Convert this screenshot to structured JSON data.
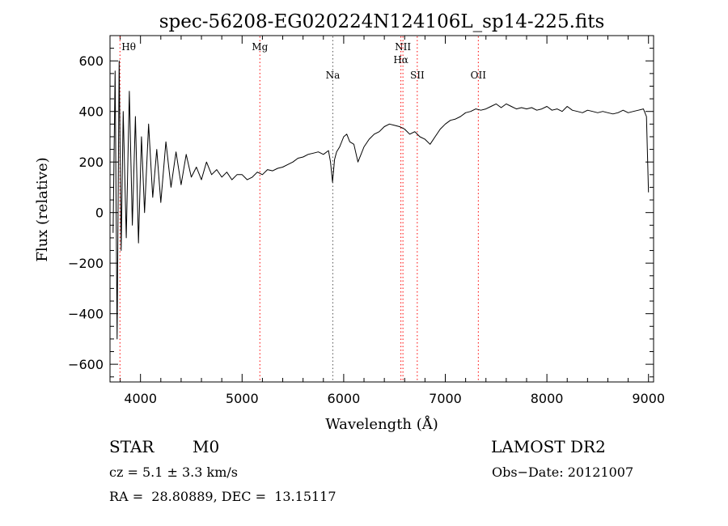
{
  "chart_data": {
    "type": "line",
    "title": "spec-56208-EG020224N124106L_sp14-225.fits",
    "xlabel": "Wavelength (Å)",
    "ylabel": "Flux (relative)",
    "xlim": [
      3700,
      9050
    ],
    "ylim": [
      -670,
      700
    ],
    "xticks": [
      4000,
      5000,
      6000,
      7000,
      8000,
      9000
    ],
    "yticks": [
      -600,
      -400,
      -200,
      0,
      200,
      400,
      600
    ],
    "xtick_labels": [
      "4000",
      "5000",
      "6000",
      "7000",
      "8000",
      "9000"
    ],
    "ytick_labels": [
      "−600",
      "−400",
      "−200",
      "0",
      "200",
      "400",
      "600"
    ],
    "lines": [
      {
        "label": "Hθ",
        "wavelength": 3798,
        "label_row": "top",
        "color": "#ff0000"
      },
      {
        "label": "Mg",
        "wavelength": 5175,
        "label_row": "top",
        "color": "#ff0000"
      },
      {
        "label": "Na",
        "wavelength": 5893,
        "label_row": "mid",
        "color": "#555555"
      },
      {
        "label": "NII",
        "wavelength": 6583,
        "label_row": "top",
        "color": "#ff0000"
      },
      {
        "label": "Hα",
        "wavelength": 6563,
        "label_row": "second",
        "color": "#ff0000"
      },
      {
        "label": "SII",
        "wavelength": 6724,
        "label_row": "mid",
        "color": "#ff0000"
      },
      {
        "label": "OII",
        "wavelength": 7325,
        "label_row": "mid",
        "color": "#ff0000"
      }
    ],
    "series": [
      {
        "color": "#000000",
        "x": [
          3730,
          3750,
          3770,
          3790,
          3810,
          3830,
          3860,
          3890,
          3920,
          3950,
          3980,
          4010,
          4040,
          4080,
          4120,
          4160,
          4200,
          4250,
          4300,
          4350,
          4400,
          4450,
          4500,
          4550,
          4600,
          4650,
          4700,
          4750,
          4800,
          4850,
          4900,
          4950,
          5000,
          5050,
          5100,
          5150,
          5200,
          5250,
          5300,
          5350,
          5400,
          5450,
          5500,
          5550,
          5600,
          5650,
          5700,
          5750,
          5800,
          5850,
          5870,
          5890,
          5910,
          5930,
          5960,
          6000,
          6030,
          6060,
          6100,
          6140,
          6170,
          6200,
          6250,
          6300,
          6350,
          6400,
          6450,
          6500,
          6550,
          6600,
          6650,
          6700,
          6750,
          6800,
          6850,
          6900,
          6950,
          7000,
          7050,
          7100,
          7150,
          7200,
          7250,
          7300,
          7350,
          7400,
          7450,
          7500,
          7550,
          7600,
          7650,
          7700,
          7750,
          7800,
          7850,
          7900,
          7950,
          8000,
          8050,
          8100,
          8150,
          8200,
          8250,
          8300,
          8350,
          8400,
          8450,
          8500,
          8550,
          8600,
          8650,
          8700,
          8750,
          8800,
          8850,
          8900,
          8950,
          8980,
          9000
        ],
        "y": [
          -80,
          560,
          -500,
          600,
          -150,
          400,
          -100,
          480,
          -50,
          380,
          -120,
          300,
          0,
          350,
          60,
          250,
          40,
          280,
          100,
          240,
          110,
          230,
          140,
          180,
          130,
          200,
          150,
          170,
          140,
          160,
          130,
          150,
          150,
          130,
          140,
          160,
          150,
          170,
          165,
          175,
          180,
          190,
          200,
          215,
          220,
          230,
          235,
          240,
          230,
          245,
          200,
          120,
          210,
          240,
          260,
          300,
          310,
          280,
          270,
          200,
          230,
          260,
          290,
          310,
          320,
          340,
          350,
          345,
          340,
          330,
          310,
          320,
          300,
          290,
          270,
          300,
          330,
          350,
          365,
          370,
          380,
          395,
          400,
          410,
          405,
          410,
          420,
          430,
          415,
          430,
          420,
          410,
          415,
          410,
          415,
          405,
          410,
          420,
          405,
          410,
          400,
          420,
          405,
          400,
          395,
          405,
          400,
          395,
          400,
          395,
          390,
          395,
          405,
          395,
          400,
          405,
          410,
          380,
          80
        ]
      }
    ],
    "grid": false,
    "legend": "none"
  },
  "info": {
    "class_label": "STAR",
    "subclass_label": "M0",
    "survey": "LAMOST DR2",
    "cz": "cz = 5.1 ± 3.3 km/s",
    "obs_date": "Obs−Date: 20121007",
    "coords": "RA =  28.80889, DEC =  13.15117"
  }
}
